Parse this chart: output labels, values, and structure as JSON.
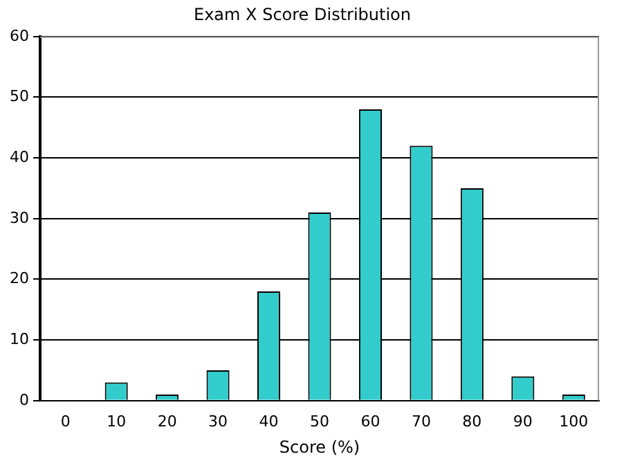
{
  "chart_data": {
    "type": "bar",
    "title": "Exam X Score Distribution",
    "xlabel": "Score (%)",
    "categories": [
      "0",
      "10",
      "20",
      "30",
      "40",
      "50",
      "60",
      "70",
      "80",
      "90",
      "100"
    ],
    "values": [
      0,
      3,
      1,
      5,
      18,
      31,
      48,
      42,
      35,
      4,
      1
    ],
    "color": "#33cccc",
    "ylim": [
      0,
      60
    ],
    "yticks": [
      0,
      10,
      20,
      30,
      40,
      50,
      60
    ],
    "grid": "y",
    "legend": false
  }
}
